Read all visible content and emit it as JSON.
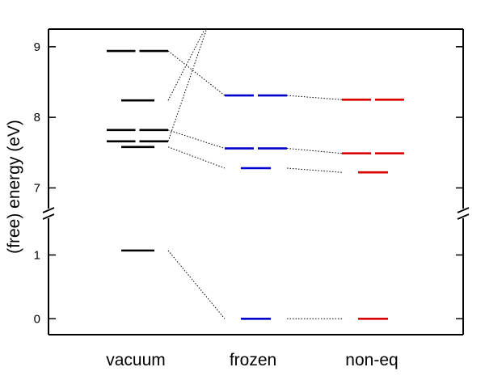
{
  "chart_data": {
    "type": "level-diagram",
    "ylabel": "(free) energy (eV)",
    "categories": [
      "vacuum",
      "frozen",
      "non-eq"
    ],
    "axis_break": true,
    "upper_ylim": [
      6.65,
      9.25
    ],
    "lower_ylim": [
      -0.25,
      1.55
    ],
    "upper_ticks": [
      "7",
      "8",
      "9"
    ],
    "lower_ticks": [
      "0",
      "1"
    ],
    "colors": {
      "vacuum": "#000000",
      "frozen": "#0000cc",
      "non-eq": "#dd0000",
      "axis": "#000000"
    },
    "levels": {
      "vacuum": [
        {
          "id": "v1",
          "energy": 1.07,
          "degenerate": false
        },
        {
          "id": "v2",
          "energy": 7.58,
          "degenerate": false
        },
        {
          "id": "v3",
          "energy": 7.66,
          "degenerate": true
        },
        {
          "id": "v4",
          "energy": 7.82,
          "degenerate": true
        },
        {
          "id": "v5",
          "energy": 8.24,
          "degenerate": false
        },
        {
          "id": "v6",
          "energy": 8.94,
          "degenerate": true
        }
      ],
      "frozen": [
        {
          "id": "f1",
          "energy": 0.0,
          "degenerate": false
        },
        {
          "id": "f2",
          "energy": 7.28,
          "degenerate": false
        },
        {
          "id": "f3",
          "energy": 7.56,
          "degenerate": true
        },
        {
          "id": "f4",
          "energy": 8.31,
          "degenerate": true
        }
      ],
      "non-eq": [
        {
          "id": "n1",
          "energy": 0.0,
          "degenerate": false
        },
        {
          "id": "n2",
          "energy": 7.22,
          "degenerate": false
        },
        {
          "id": "n3",
          "energy": 7.49,
          "degenerate": true
        },
        {
          "id": "n4",
          "energy": 8.25,
          "degenerate": true
        }
      ]
    },
    "connections": [
      {
        "from": "v1",
        "to": "f1"
      },
      {
        "from": "f1",
        "to": "n1"
      },
      {
        "from": "v2",
        "to": "f2"
      },
      {
        "from": "f2",
        "to": "n2"
      },
      {
        "from": "v4",
        "to": "f3"
      },
      {
        "from": "f3",
        "to": "n3"
      },
      {
        "from": "v6",
        "to": "f4"
      },
      {
        "from": "f4",
        "to": "n4"
      },
      {
        "from": "v5",
        "to_energy": 9.4
      },
      {
        "from": "v3",
        "to_energy": 9.4
      }
    ]
  }
}
